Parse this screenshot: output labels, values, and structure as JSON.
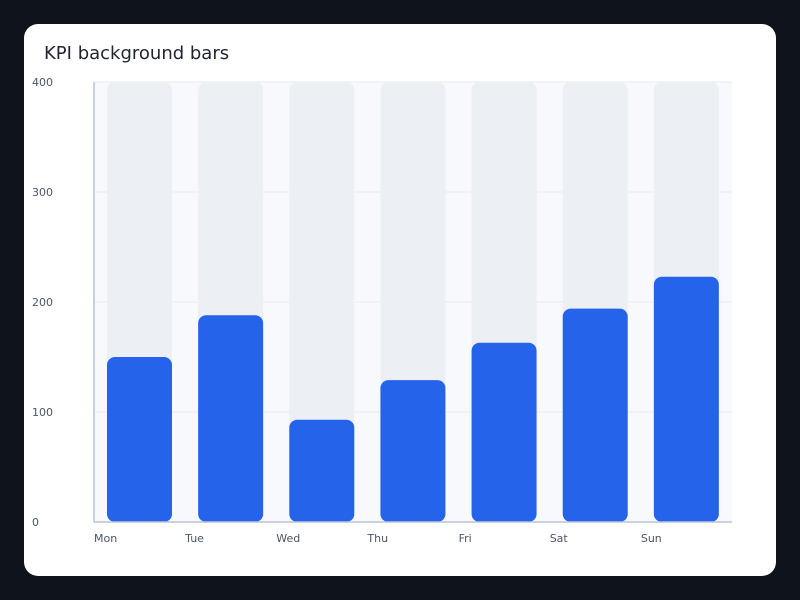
{
  "chart_data": {
    "type": "bar",
    "title": "KPI background bars",
    "categories": [
      "Mon",
      "Tue",
      "Wed",
      "Thu",
      "Fri",
      "Sat",
      "Sun"
    ],
    "series": [
      {
        "values": [
          150,
          188,
          93,
          129,
          163,
          194,
          223
        ]
      }
    ],
    "background_value": 400,
    "ylim": [
      0,
      400
    ],
    "yticks": [
      0,
      100,
      200,
      300,
      400
    ],
    "grid": true,
    "colors": {
      "bar": "#2563eb",
      "background_bar": "#eceff3",
      "plot_background": "#f8f9fc",
      "axis": "#b9c3d6",
      "grid": "#e6eaf1"
    }
  }
}
